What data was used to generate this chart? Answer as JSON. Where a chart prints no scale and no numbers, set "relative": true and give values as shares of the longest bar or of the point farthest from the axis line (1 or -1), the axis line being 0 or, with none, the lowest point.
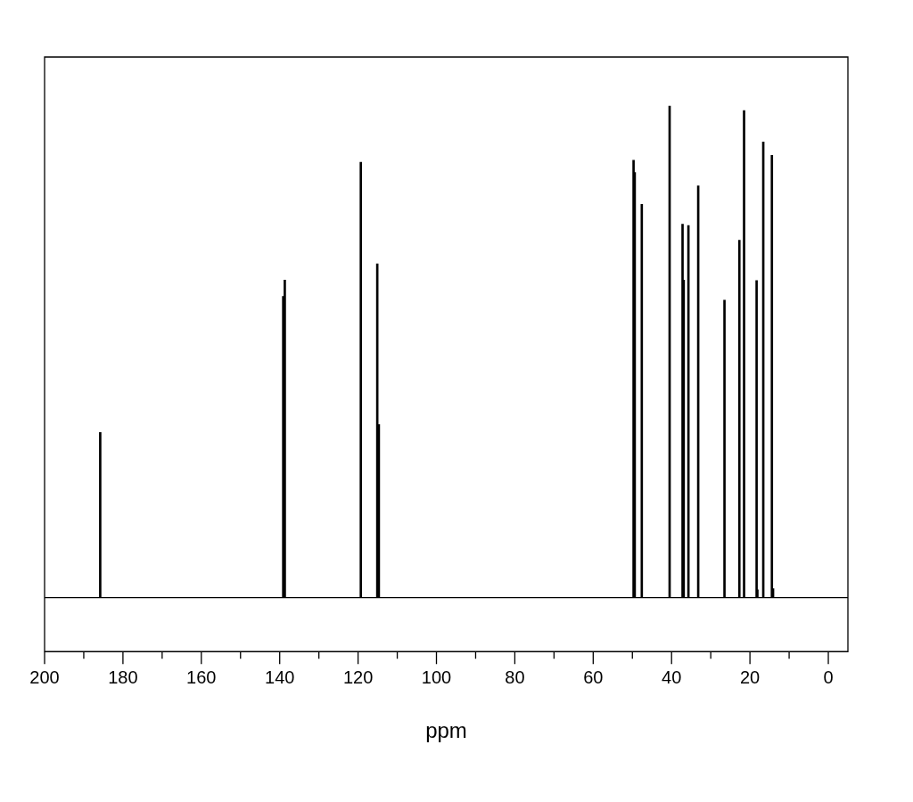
{
  "chart_data": {
    "type": "bar",
    "xlabel": "ppm",
    "relative": true,
    "grid": false,
    "legend": false,
    "xlim": [
      200,
      -5
    ],
    "xticks": [
      200,
      180,
      160,
      140,
      120,
      100,
      80,
      60,
      40,
      20,
      0
    ],
    "x": [
      185.8,
      139.1,
      138.7,
      119.3,
      115.1,
      114.7,
      49.7,
      49.4,
      47.6,
      40.5,
      37.2,
      36.9,
      35.7,
      33.2,
      26.5,
      22.7,
      21.5,
      18.3,
      18.1,
      16.6,
      14.4,
      14.1
    ],
    "series": [
      {
        "color": "#000000",
        "values": [
          0.336,
          0.613,
          0.646,
          0.886,
          0.679,
          0.352,
          0.89,
          0.865,
          0.8,
          1.0,
          0.76,
          0.646,
          0.757,
          0.838,
          0.605,
          0.727,
          0.991,
          0.645,
          0.016,
          0.927,
          0.9,
          0.018
        ]
      }
    ]
  }
}
